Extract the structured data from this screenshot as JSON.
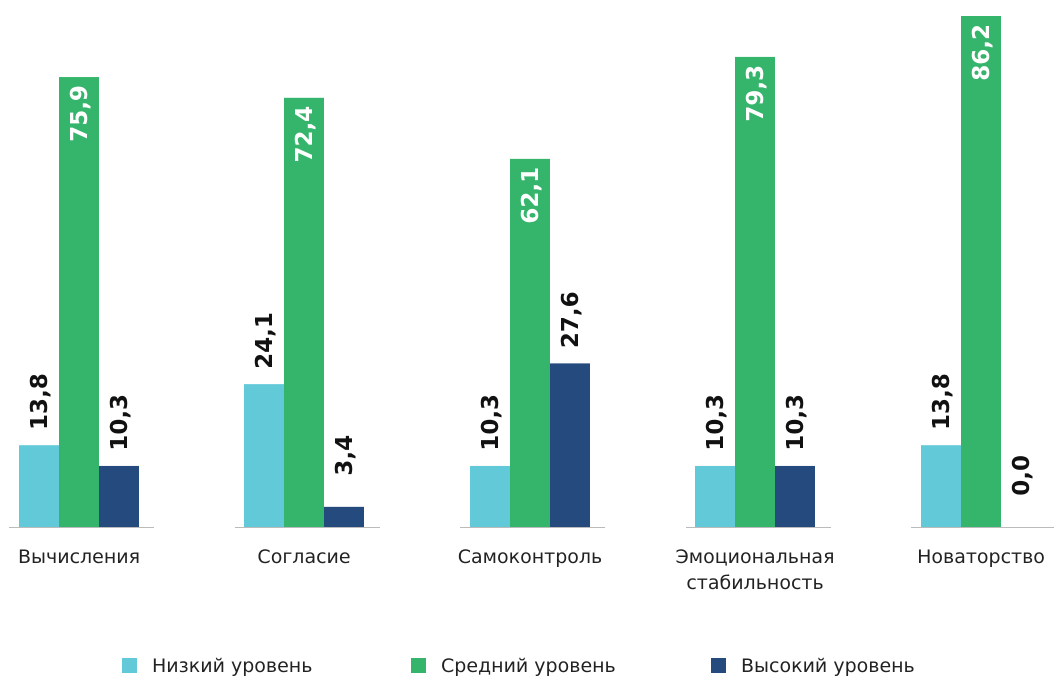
{
  "chart_data": {
    "type": "bar",
    "categories": [
      [
        "Вычисления"
      ],
      [
        "Согласие"
      ],
      [
        "Самоконтроль"
      ],
      [
        "Эмоциональная",
        "стабильность"
      ],
      [
        "Новаторство"
      ]
    ],
    "series": [
      {
        "name": "Низкий уровень",
        "color": "#62c9d8",
        "values": [
          13.8,
          24.1,
          10.3,
          10.3,
          13.8
        ],
        "labels": [
          "13,8",
          "24,1",
          "10,3",
          "10,3",
          "13,8"
        ]
      },
      {
        "name": "Средний уровень",
        "color": "#35b56b",
        "values": [
          75.9,
          72.4,
          62.1,
          79.3,
          86.2
        ],
        "labels": [
          "75,9",
          "72,4",
          "62,1",
          "79,3",
          "86,2"
        ]
      },
      {
        "name": "Высокий уровень",
        "color": "#244a7e",
        "values": [
          10.3,
          3.4,
          27.6,
          10.3,
          0.0
        ],
        "labels": [
          "10,3",
          "3,4",
          "27,6",
          "10,3",
          "0,0"
        ]
      }
    ],
    "ylim": [
      0,
      86.2
    ],
    "legend_position": "bottom",
    "grid": false,
    "value_label_color_on_bar": "#ffffff",
    "value_label_color_outside": "#111111",
    "axis_line_color": "#bbbbbb"
  }
}
